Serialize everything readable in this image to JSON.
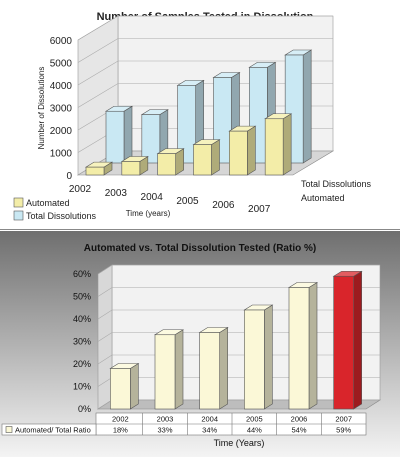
{
  "colors": {
    "automated": "#F3EDA8",
    "total": "#C9E8F3",
    "highlight": "#D9252B"
  },
  "chart_data": [
    {
      "type": "bar",
      "title": "Number of Samples Tested in Dissolution",
      "xlabel": "Time (years)",
      "ylabel": "Number of Dissolutions",
      "categories": [
        "2002",
        "2003",
        "2004",
        "2005",
        "2006",
        "2007"
      ],
      "series": [
        {
          "name": "Automated",
          "values": [
            350,
            600,
            950,
            1350,
            1950,
            2500
          ]
        },
        {
          "name": "Total Dissolutions",
          "values": [
            2300,
            2150,
            3450,
            3800,
            4250,
            4800
          ]
        }
      ],
      "depth_labels": [
        "Total Dissolutions",
        "Automated"
      ],
      "ylim": [
        0,
        6000
      ],
      "yticks": [
        0,
        1000,
        2000,
        3000,
        4000,
        5000,
        6000
      ],
      "legend": "bottom-left",
      "grid": true
    },
    {
      "type": "bar",
      "title": "Automated vs. Total Dissolution Tested (Ratio %)",
      "xlabel": "Time (Years)",
      "categories": [
        "2002",
        "2003",
        "2004",
        "2005",
        "2006",
        "2007"
      ],
      "series": [
        {
          "name": "Automated/ Total Ratio",
          "values": [
            18,
            33,
            34,
            44,
            54,
            59
          ]
        }
      ],
      "table_values": [
        "18%",
        "33%",
        "34%",
        "44%",
        "54%",
        "59%"
      ],
      "ylim": [
        0,
        60
      ],
      "yticks": [
        "0%",
        "10%",
        "20%",
        "30%",
        "40%",
        "50%",
        "60%"
      ],
      "legend": "data-table",
      "grid": true
    }
  ]
}
